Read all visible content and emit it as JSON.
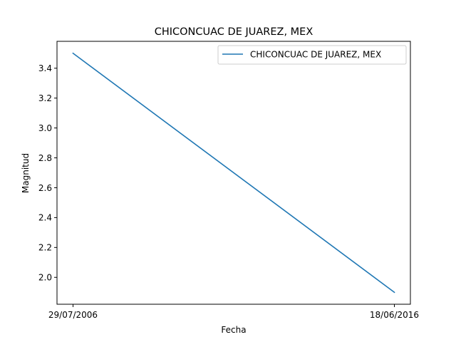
{
  "chart_data": {
    "type": "line",
    "title": "CHICONCUAC DE JUAREZ, MEX",
    "xlabel": "Fecha",
    "ylabel": "Magnitud",
    "categories": [
      "29/07/2006",
      "18/06/2016"
    ],
    "series": [
      {
        "name": "CHICONCUAC DE JUAREZ, MEX",
        "values": [
          3.5,
          1.9
        ],
        "color": "#1f77b4"
      }
    ],
    "ylim": [
      1.82,
      3.58
    ],
    "yticks": [
      2.0,
      2.2,
      2.4,
      2.6,
      2.8,
      3.0,
      3.2,
      3.4
    ],
    "ytick_labels": [
      "2.0",
      "2.2",
      "2.4",
      "2.6",
      "2.8",
      "3.0",
      "3.2",
      "3.4"
    ],
    "grid": false,
    "legend_position": "top-right"
  }
}
